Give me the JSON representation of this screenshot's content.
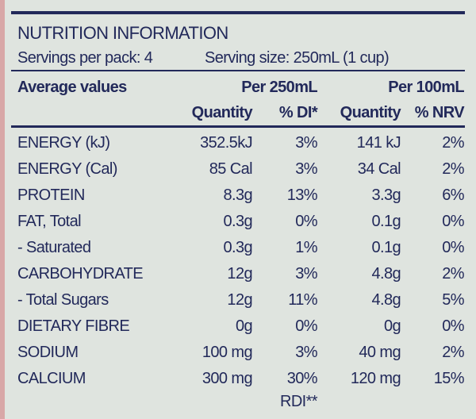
{
  "header": {
    "title": "NUTRITION INFORMATION",
    "servings": "Servings per pack: 4",
    "serving_size": "Serving size: 250mL (1 cup)"
  },
  "table": {
    "columns": [
      "Average values",
      "Per 250mL",
      "Per 100mL"
    ],
    "subcolumns": [
      "Quantity",
      "% DI*",
      "Quantity",
      "% NRV"
    ],
    "rows": [
      [
        "ENERGY (kJ)",
        "352.5kJ",
        "3%",
        "141 kJ",
        "2%"
      ],
      [
        "ENERGY (Cal)",
        "85 Cal",
        "3%",
        "34 Cal",
        "2%"
      ],
      [
        "PROTEIN",
        "8.3g",
        "13%",
        "3.3g",
        "6%"
      ],
      [
        "FAT, Total",
        "0.3g",
        "0%",
        "0.1g",
        "0%"
      ],
      [
        "- Saturated",
        "0.3g",
        "1%",
        "0.1g",
        "0%"
      ],
      [
        "CARBOHYDRATE",
        "12g",
        "3%",
        "4.8g",
        "2%"
      ],
      [
        "- Total Sugars",
        "12g",
        "11%",
        "4.8g",
        "5%"
      ],
      [
        "DIETARY FIBRE",
        "0g",
        "0%",
        "0g",
        "0%"
      ],
      [
        "SODIUM",
        "100 mg",
        "3%",
        "40 mg",
        "2%"
      ],
      [
        "CALCIUM",
        "300 mg",
        "30%",
        "120 mg",
        "15%"
      ]
    ]
  },
  "footnote": "RDI**"
}
